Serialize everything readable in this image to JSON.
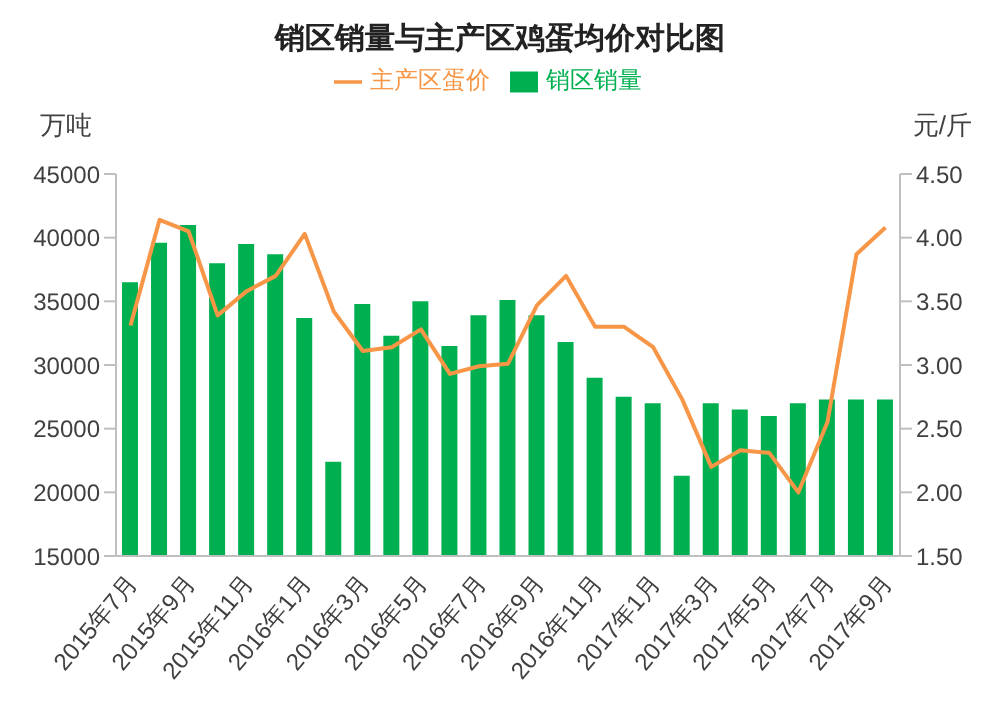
{
  "chart_data": {
    "type": "bar",
    "title": "销区销量与主产区鸡蛋均价对比图",
    "ylabel": "万吨",
    "y2label": "元/斤",
    "categories": [
      "2015年7月",
      null,
      "2015年9月",
      null,
      "2015年11月",
      null,
      "2016年1月",
      null,
      "2016年3月",
      null,
      "2016年5月",
      null,
      "2016年7月",
      null,
      "2016年9月",
      null,
      "2016年11月",
      null,
      "2017年1月",
      null,
      "2017年3月",
      null,
      "2017年5月",
      null,
      "2017年7月",
      null,
      "2017年9月"
    ],
    "series": [
      {
        "name": "销区销量",
        "color": "#00b050",
        "values": [
          36500,
          39600,
          41000,
          38000,
          39500,
          38700,
          33700,
          22400,
          34800,
          32300,
          35000,
          31500,
          33900,
          35100,
          33900,
          31800,
          29000,
          27500,
          27000,
          21300,
          27000,
          26500,
          26000,
          27000,
          27300,
          27300,
          27300
        ]
      },
      {
        "name": "主产区蛋价",
        "type": "line",
        "axis": "y2",
        "color": "#f79646",
        "values": [
          3.31,
          4.14,
          4.05,
          3.39,
          3.58,
          3.7,
          4.03,
          3.42,
          3.11,
          3.14,
          3.28,
          2.93,
          2.99,
          3.01,
          3.47,
          3.7,
          3.3,
          3.3,
          3.14,
          2.73,
          2.2,
          2.33,
          2.31,
          2.0,
          2.55,
          3.87,
          4.08
        ]
      }
    ],
    "ylim": [
      15000,
      45000
    ],
    "yticks": [
      15000,
      20000,
      25000,
      30000,
      35000,
      40000,
      45000
    ],
    "y2lim": [
      1.5,
      4.5
    ],
    "y2ticks": [
      {
        "value": 1.5,
        "label": "1.50"
      },
      {
        "value": 2,
        "label": "2.00"
      },
      {
        "value": 2.5,
        "label": "2.50"
      },
      {
        "value": 3,
        "label": "3.00"
      },
      {
        "value": 3.5,
        "label": "3.50"
      },
      {
        "value": 4,
        "label": "4.00"
      },
      {
        "value": 4.5,
        "label": "4.50"
      }
    ],
    "legend": "top",
    "grid": false,
    "marker": "none",
    "line_style": "solid"
  }
}
